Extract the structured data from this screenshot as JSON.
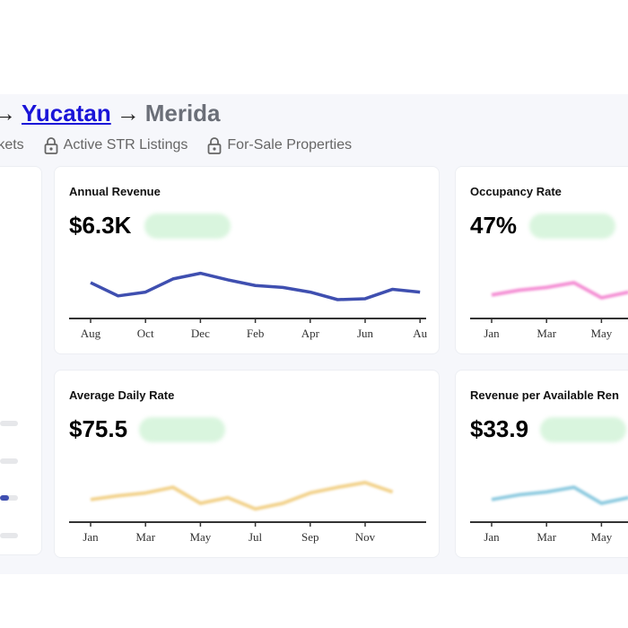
{
  "breadcrumb": {
    "items": [
      {
        "label": "Yucatan",
        "link": true
      },
      {
        "label": "Merida",
        "link": false
      }
    ],
    "separator": "→"
  },
  "tabs": [
    {
      "label": "rkets",
      "locked": false
    },
    {
      "label": "Active STR Listings",
      "locked": true
    },
    {
      "label": "For-Sale Properties",
      "locked": true
    }
  ],
  "colors": {
    "revenue": "#3f4fb0",
    "occupancy": "#f48fd4",
    "adr": "#f2d28c",
    "revpar": "#8fcbe0",
    "badge_bg": "#d9f5de"
  },
  "cards": [
    {
      "title": "Annual Revenue",
      "value": "$6.3K",
      "chart_data": {
        "type": "line",
        "x_ticks": [
          "Aug",
          "Oct",
          "Dec",
          "Feb",
          "Apr",
          "Jun",
          "Au"
        ],
        "values": [
          58,
          44,
          48,
          62,
          68,
          61,
          55,
          53,
          48,
          40,
          41,
          51,
          48
        ]
      }
    },
    {
      "title": "Occupancy Rate",
      "value": "47%",
      "chart_data": {
        "type": "line",
        "x_ticks": [
          "Jan",
          "Mar",
          "May"
        ],
        "values": [
          45,
          50,
          53,
          58,
          42,
          48
        ]
      }
    },
    {
      "title": "Average Daily Rate",
      "value": "$75.5",
      "chart_data": {
        "type": "line",
        "x_ticks": [
          "Jan",
          "Mar",
          "May",
          "Jul",
          "Sep",
          "Nov"
        ],
        "values": [
          44,
          48,
          51,
          57,
          40,
          46,
          34,
          40,
          51,
          57,
          62,
          52
        ]
      }
    },
    {
      "title": "Revenue per Available Ren",
      "value": "$33.9",
      "chart_data": {
        "type": "line",
        "x_ticks": [
          "Jan",
          "Mar",
          "May"
        ],
        "values": [
          44,
          49,
          52,
          57,
          40,
          46
        ]
      }
    }
  ],
  "side_bars": [
    0,
    0,
    0.4,
    0
  ]
}
